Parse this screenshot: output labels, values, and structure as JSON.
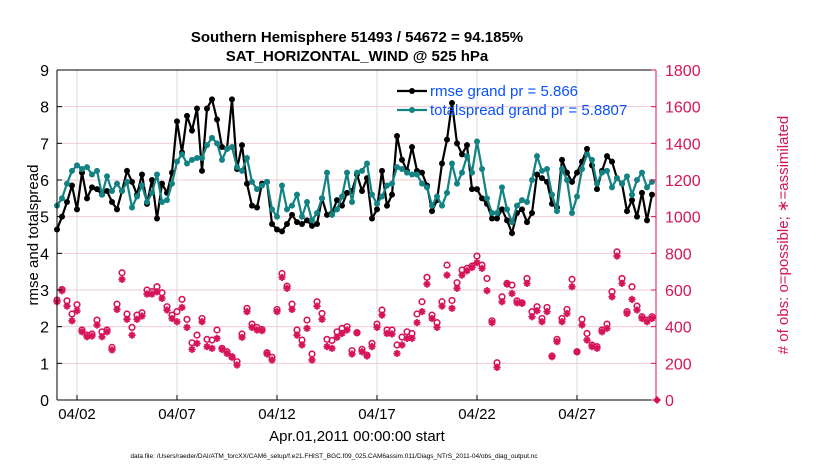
{
  "chart_data": {
    "type": "line",
    "title": [
      "Southern Hemisphere 51493 / 54672 = 94.185%",
      "SAT_HORIZONTAL_WIND @ 525 hPa"
    ],
    "xlabel": "Apr.01,2011 00:00:00 start",
    "ylabel_left": "rmse and totalspread",
    "ylabel_right": "# of obs: o=possible; ∗=assimilated",
    "x_start": "2011-04-01 00:00",
    "x_interval_hours": 6,
    "xlim_days_since_start": [
      0,
      29.95
    ],
    "x_ticks": [
      {
        "day": 1,
        "label": "04/02"
      },
      {
        "day": 6,
        "label": "04/07"
      },
      {
        "day": 11,
        "label": "04/12"
      },
      {
        "day": 16,
        "label": "04/17"
      },
      {
        "day": 21,
        "label": "04/22"
      },
      {
        "day": 26,
        "label": "04/27"
      }
    ],
    "ylim_left": [
      0,
      9
    ],
    "y_ticks_left": [
      "0",
      "1",
      "2",
      "3",
      "4",
      "5",
      "6",
      "7",
      "8",
      "9"
    ],
    "ylim_right": [
      0,
      1800
    ],
    "y_ticks_right": [
      "0",
      "200",
      "400",
      "600",
      "800",
      "1000",
      "1200",
      "1400",
      "1600",
      "1800"
    ],
    "grid": true,
    "legend_placement": "top-right",
    "colors": {
      "rmse": "#000000",
      "totalspread": "#128282",
      "obs": "#D6145A",
      "legend_text": "#0A52FF",
      "h_grid": "#F3C9D6",
      "v_grid": "#D9D9D9"
    },
    "series": [
      {
        "name": "rmse grand pr = 5.866",
        "axis": "left",
        "marker": "circle",
        "values": [
          4.65,
          5.0,
          5.4,
          5.85,
          5.2,
          6.2,
          5.5,
          5.8,
          5.75,
          5.6,
          5.7,
          5.4,
          5.2,
          5.7,
          6.25,
          5.95,
          5.6,
          6.15,
          5.35,
          6.0,
          4.95,
          5.9,
          5.65,
          6.2,
          7.6,
          6.75,
          7.75,
          7.35,
          7.95,
          6.25,
          7.95,
          8.2,
          7.65,
          6.9,
          6.85,
          8.2,
          6.3,
          6.95,
          5.9,
          5.3,
          5.25,
          5.9,
          5.95,
          4.8,
          4.65,
          4.6,
          4.8,
          5.05,
          4.85,
          4.8,
          4.9,
          4.75,
          4.8,
          5.5,
          5.05,
          5.1,
          5.45,
          5.3,
          5.65,
          5.7,
          6.15,
          5.7,
          6.05,
          4.95,
          5.2,
          6.25,
          5.3,
          5.6,
          7.2,
          6.55,
          6.25,
          6.9,
          6.25,
          6.2,
          5.85,
          5.15,
          5.45,
          6.45,
          7.1,
          8.1,
          7.0,
          6.7,
          6.95,
          5.75,
          5.75,
          5.5,
          5.35,
          4.95,
          4.95,
          5.2,
          4.9,
          4.55,
          5.1,
          5.2,
          4.85,
          5.1,
          6.15,
          6.05,
          5.95,
          5.35,
          5.25,
          6.55,
          6.2,
          5.95,
          6.2,
          6.5,
          6.85,
          6.4,
          5.75,
          6.25,
          6.65,
          6.5,
          6.05,
          5.9,
          5.15,
          5.45,
          5.0,
          5.65,
          4.9,
          5.6
        ]
      },
      {
        "name": "totalspread grand pr = 5.8807",
        "axis": "left",
        "marker": "circle",
        "values": [
          5.3,
          5.5,
          5.9,
          6.25,
          6.4,
          6.3,
          6.35,
          6.15,
          6.25,
          5.6,
          6.1,
          5.7,
          5.9,
          5.7,
          5.95,
          5.25,
          5.55,
          5.85,
          5.4,
          5.65,
          6.15,
          5.4,
          5.45,
          5.9,
          6.5,
          6.7,
          6.45,
          6.55,
          6.6,
          6.6,
          6.95,
          7.15,
          7.0,
          6.55,
          6.85,
          6.9,
          6.35,
          6.25,
          6.6,
          5.95,
          5.75,
          5.85,
          5.95,
          5.2,
          5.0,
          5.85,
          5.2,
          5.3,
          5.6,
          5.0,
          5.4,
          4.9,
          5.1,
          5.5,
          6.2,
          5.05,
          5.2,
          5.55,
          6.2,
          5.4,
          6.2,
          6.25,
          6.45,
          5.6,
          5.35,
          5.55,
          5.85,
          5.9,
          6.35,
          6.3,
          6.2,
          6.15,
          6.15,
          5.9,
          5.8,
          5.3,
          5.55,
          5.3,
          5.65,
          6.45,
          5.9,
          6.2,
          6.65,
          6.2,
          7.05,
          6.3,
          5.5,
          5.1,
          5.1,
          5.8,
          5.2,
          4.85,
          5.3,
          5.45,
          5.4,
          6.0,
          6.65,
          6.25,
          6.3,
          5.6,
          5.15,
          6.3,
          6.0,
          5.1,
          5.55,
          6.3,
          6.7,
          6.55,
          5.9,
          6.2,
          6.25,
          5.8,
          6.05,
          5.9,
          6.1,
          5.6,
          6.0,
          6.2,
          5.8,
          5.95
        ]
      },
      {
        "name": "possible",
        "axis": "right",
        "marker": "o",
        "values": [
          545,
          603,
          541,
          469,
          520,
          382,
          354,
          360,
          436,
          372,
          382,
          287,
          523,
          694,
          469,
          396,
          463,
          476,
          600,
          591,
          618,
          585,
          509,
          463,
          482,
          549,
          440,
          312,
          354,
          445,
          331,
          327,
          382,
          282,
          263,
          236,
          209,
          360,
          500,
          414,
          396,
          385,
          258,
          233,
          494,
          690,
          621,
          523,
          382,
          327,
          436,
          251,
          536,
          472,
          331,
          325,
          372,
          391,
          400,
          269,
          367,
          276,
          245,
          309,
          414,
          491,
          382,
          382,
          300,
          343,
          372,
          363,
          469,
          536,
          669,
          463,
          422,
          536,
          736,
          543,
          640,
          709,
          718,
          731,
          785,
          736,
          663,
          432,
          203,
          563,
          636,
          627,
          541,
          530,
          663,
          482,
          509,
          445,
          505,
          240,
          331,
          445,
          494,
          658,
          263,
          440,
          363,
          300,
          291,
          382,
          414,
          591,
          808,
          663,
          482,
          618,
          512,
          454,
          436,
          454,
          0
        ]
      },
      {
        "name": "assimilated",
        "axis": "right",
        "marker": "*",
        "values": [
          536,
          596,
          512,
          432,
          487,
          372,
          345,
          349,
          409,
          345,
          372,
          273,
          494,
          658,
          440,
          354,
          440,
          458,
          578,
          578,
          590,
          554,
          491,
          445,
          427,
          505,
          396,
          276,
          309,
          427,
          291,
          282,
          336,
          276,
          254,
          233,
          191,
          342,
          482,
          396,
          382,
          378,
          251,
          218,
          482,
          669,
          609,
          494,
          354,
          300,
          391,
          218,
          512,
          440,
          291,
          282,
          342,
          363,
          382,
          251,
          367,
          263,
          240,
          291,
          396,
          463,
          363,
          360,
          254,
          300,
          336,
          336,
          422,
          482,
          632,
          445,
          396,
          512,
          681,
          500,
          609,
          681,
          705,
          723,
          749,
          718,
          596,
          422,
          178,
          536,
          632,
          581,
          530,
          527,
          636,
          454,
          487,
          427,
          482,
          236,
          318,
          427,
          472,
          618,
          263,
          409,
          327,
          291,
          282,
          372,
          391,
          563,
          785,
          636,
          472,
          549,
          491,
          445,
          427,
          445,
          0
        ]
      }
    ]
  },
  "footer": "data file: /Users/raeder/DAI/ATM_forcXX/CAM6_setup/f.e21.FHIST_BGC.f09_025.CAM6assim.011/Diags_NTrS_2011-04/obs_diag_output.nc"
}
